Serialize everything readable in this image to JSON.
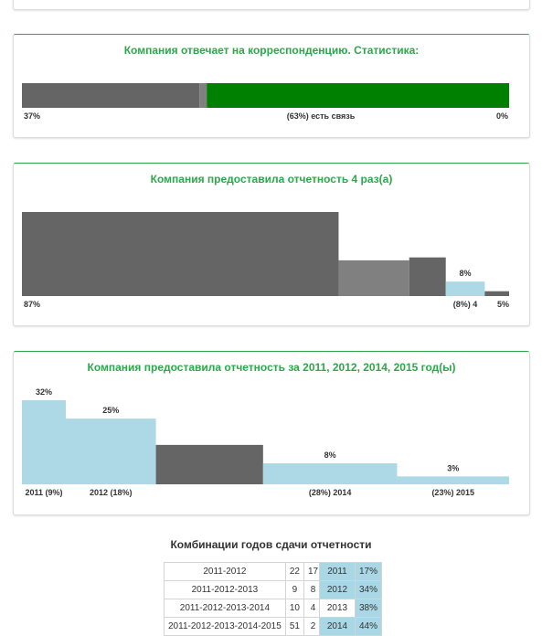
{
  "colors": {
    "accent": "#2ca84a",
    "dark": "#656565",
    "mid": "#808080",
    "green": "#008000",
    "light_blue": "#add8e6"
  },
  "card1": {
    "title": "Компания отвечает на корреспонденцию. Статистика:",
    "chart_data": {
      "type": "bar",
      "segments": [
        {
          "label": "37%",
          "value": 37,
          "color": "#656565"
        },
        {
          "label": "",
          "value": 1.5,
          "color": "#808080"
        },
        {
          "label": "(63%) есть связь",
          "value": 63,
          "color": "#008000"
        },
        {
          "label": "0%",
          "value": 0,
          "color": "#656565"
        }
      ]
    }
  },
  "card2": {
    "title": "Компания предоставила отчетность 4 раз(а)",
    "chart_data": {
      "type": "bar",
      "bars": [
        {
          "value": 87,
          "share": 65,
          "color": "#656565",
          "top_label": "",
          "bottom_label": "87%"
        },
        {
          "value": 37,
          "share": 14.5,
          "color": "#808080",
          "top_label": "",
          "bottom_label": ""
        },
        {
          "value": 40,
          "share": 7.5,
          "color": "#656565",
          "top_label": "",
          "bottom_label": ""
        },
        {
          "value": 15,
          "share": 8,
          "color": "#add8e6",
          "top_label": "8%",
          "bottom_label": "(8%) 4"
        },
        {
          "value": 5,
          "share": 5,
          "color": "#656565",
          "top_label": "",
          "bottom_label": "5%"
        }
      ]
    }
  },
  "card3": {
    "title": "Компания предоставила отчетность за 2011, 2012, 2014, 2015 год(ы)",
    "chart_data": {
      "type": "bar",
      "bars": [
        {
          "value": 32,
          "share": 9,
          "color": "#add8e6",
          "top_label": "32%",
          "bottom_label": "2011 (9%)"
        },
        {
          "value": 25,
          "share": 18.5,
          "color": "#add8e6",
          "top_label": "25%",
          "bottom_label": "2012 (18%)"
        },
        {
          "value": 15,
          "share": 22,
          "color": "#656565",
          "top_label": "",
          "bottom_label": ""
        },
        {
          "value": 8,
          "share": 27.5,
          "color": "#add8e6",
          "top_label": "8%",
          "bottom_label": "(28%) 2014"
        },
        {
          "value": 3,
          "share": 23,
          "color": "#add8e6",
          "top_label": "3%",
          "bottom_label": "(23%) 2015"
        }
      ]
    }
  },
  "combos": {
    "title": "Комбинации годов сдачи отчетности",
    "rows": [
      {
        "combo": "2011-2012",
        "a": "22",
        "b": "17"
      },
      {
        "combo": "2011-2012-2013",
        "a": "9",
        "b": "8"
      },
      {
        "combo": "2011-2012-2013-2014",
        "a": "10",
        "b": "4"
      },
      {
        "combo": "2011-2012-2013-2014-2015",
        "a": "51",
        "b": "2"
      }
    ],
    "years": [
      {
        "year": "2011",
        "pct": "17%",
        "highlight": true
      },
      {
        "year": "2012",
        "pct": "34%",
        "highlight": true
      },
      {
        "year": "2013",
        "pct": "38%",
        "highlight": false
      },
      {
        "year": "2014",
        "pct": "44%",
        "highlight": true
      }
    ]
  }
}
